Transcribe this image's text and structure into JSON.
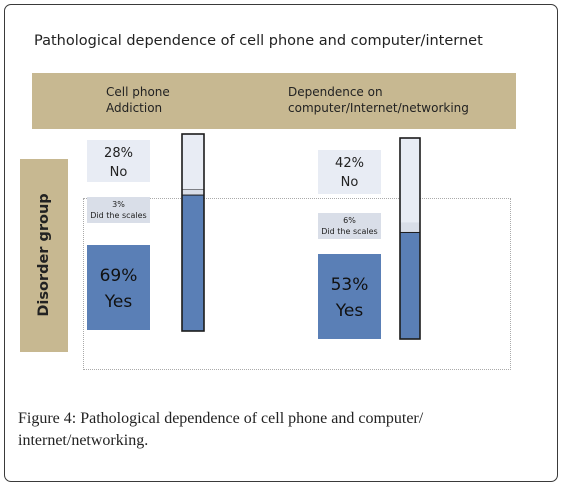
{
  "figure": {
    "caption_label": "Figure 4:",
    "caption_text": "Pathological dependence of cell phone and computer/ internet/networking."
  },
  "group_label": "Disorder group",
  "colors": {
    "yes": "#5a7fb6",
    "no": "#e8ecf4",
    "did_scales": "#d9dee8",
    "header_band": "#c7b891",
    "bar_border": "#1c1c1c"
  },
  "chart_data": {
    "type": "bar",
    "stacked": true,
    "title": "Pathological dependence of cell phone and computer/internet",
    "categories": [
      [
        "Cell phone",
        "Addiction"
      ],
      [
        "Dependence on",
        "computer/Internet/networking"
      ]
    ],
    "series": [
      {
        "name": "Yes",
        "values": [
          69,
          53
        ],
        "labels": [
          "69%",
          "53%"
        ]
      },
      {
        "name": "Did the scales",
        "values": [
          3,
          6
        ],
        "labels": [
          "3%",
          "6%"
        ]
      },
      {
        "name": "No",
        "values": [
          28,
          42
        ],
        "labels": [
          "28%",
          "42%"
        ]
      }
    ],
    "ylim": [
      0,
      100
    ],
    "grid": false
  }
}
